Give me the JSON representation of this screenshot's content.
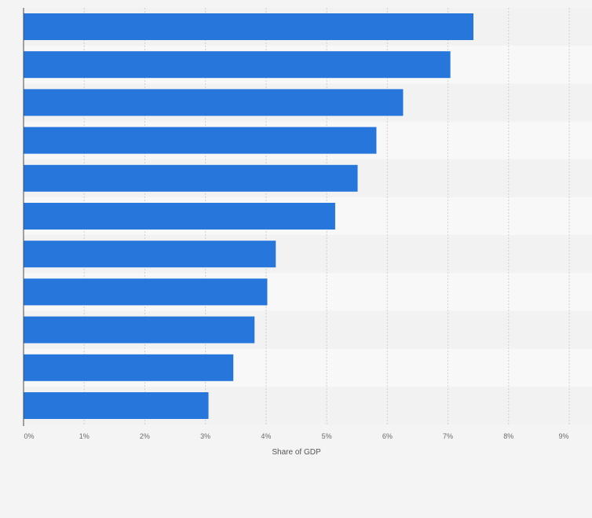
{
  "chart_data": {
    "type": "bar",
    "orientation": "horizontal",
    "categories": [
      "",
      "",
      "",
      "",
      "",
      "",
      "",
      "",
      "",
      "",
      ""
    ],
    "values": [
      7.42,
      7.04,
      6.26,
      5.82,
      5.51,
      5.14,
      4.16,
      4.02,
      3.81,
      3.46,
      3.05
    ],
    "title": "",
    "xlabel": "Share of GDP",
    "ylabel": "",
    "xlim": [
      0,
      9
    ],
    "xticks": [
      "0%",
      "1%",
      "2%",
      "3%",
      "4%",
      "5%",
      "6%",
      "7%",
      "8%",
      "9%"
    ],
    "grid": "vertical dashed",
    "legend": "none"
  },
  "colors": {
    "bar": "#2776dc",
    "band_dark": "#f2f2f3",
    "band_light": "#f8f8f9",
    "background": "#f4f4f5",
    "grid": "#cfcfd2",
    "axis": "#4a4a4a"
  }
}
